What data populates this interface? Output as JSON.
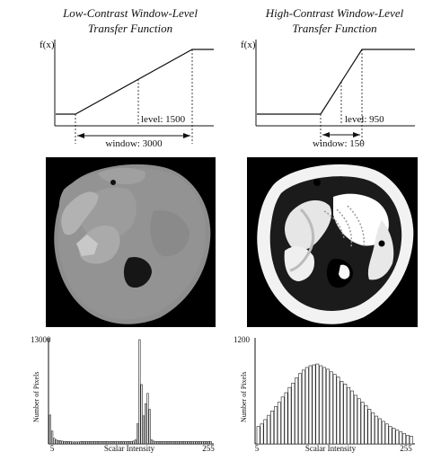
{
  "left": {
    "title_line1": "Low-Contrast Window-Level",
    "title_line2": "Transfer Function",
    "fx_label": "f(x)",
    "level_label": "level: 1500",
    "window_label": "window: 3000",
    "hist_y_max": "13000",
    "hist_y_label": "Number of Pixels",
    "hist_x_min": "5",
    "hist_x_max": "255",
    "hist_x_label": "Scalar Intensity"
  },
  "right": {
    "title_line1": "High-Contrast Window-Level",
    "title_line2": "Transfer Function",
    "fx_label": "f(x)",
    "level_label": "level: 950",
    "window_label": "window: 150",
    "hist_y_max": "1200",
    "hist_y_label": "Number of Pixels",
    "hist_x_min": "5",
    "hist_x_max": "255",
    "hist_x_label": "Scalar Intensity"
  },
  "chart_data": [
    {
      "type": "bar",
      "title": "",
      "xlabel": "Scalar Intensity",
      "ylabel": "Number of Pixels",
      "xlim": [
        5,
        255
      ],
      "ylim": [
        0,
        13000
      ],
      "values": [
        3600,
        1600,
        700,
        500,
        400,
        400,
        350,
        300,
        300,
        300,
        300,
        250,
        250,
        250,
        250,
        300,
        300,
        300,
        300,
        300,
        300,
        300,
        300,
        300,
        300,
        300,
        300,
        300,
        300,
        300,
        300,
        300,
        300,
        300,
        300,
        300,
        300,
        300,
        300,
        300,
        300,
        350,
        500,
        2500,
        13000,
        7400,
        3500,
        5000,
        6300,
        4300,
        500,
        350,
        300,
        300,
        300,
        300,
        300,
        300,
        300,
        300,
        300,
        300,
        300,
        300,
        300,
        300,
        300,
        300,
        300,
        300,
        300,
        300,
        300,
        300,
        300,
        300,
        300,
        300,
        300,
        300
      ]
    },
    {
      "type": "bar",
      "title": "",
      "xlabel": "Scalar Intensity",
      "ylabel": "Number of Pixels",
      "xlim": [
        5,
        255
      ],
      "ylim": [
        0,
        1200
      ],
      "values": [
        200,
        230,
        280,
        330,
        380,
        430,
        480,
        540,
        590,
        650,
        700,
        760,
        810,
        850,
        880,
        900,
        910,
        920,
        900,
        880,
        860,
        830,
        800,
        770,
        720,
        690,
        650,
        610,
        560,
        520,
        480,
        440,
        400,
        360,
        320,
        290,
        260,
        230,
        200,
        180,
        160,
        140,
        120,
        100,
        90
      ]
    }
  ]
}
